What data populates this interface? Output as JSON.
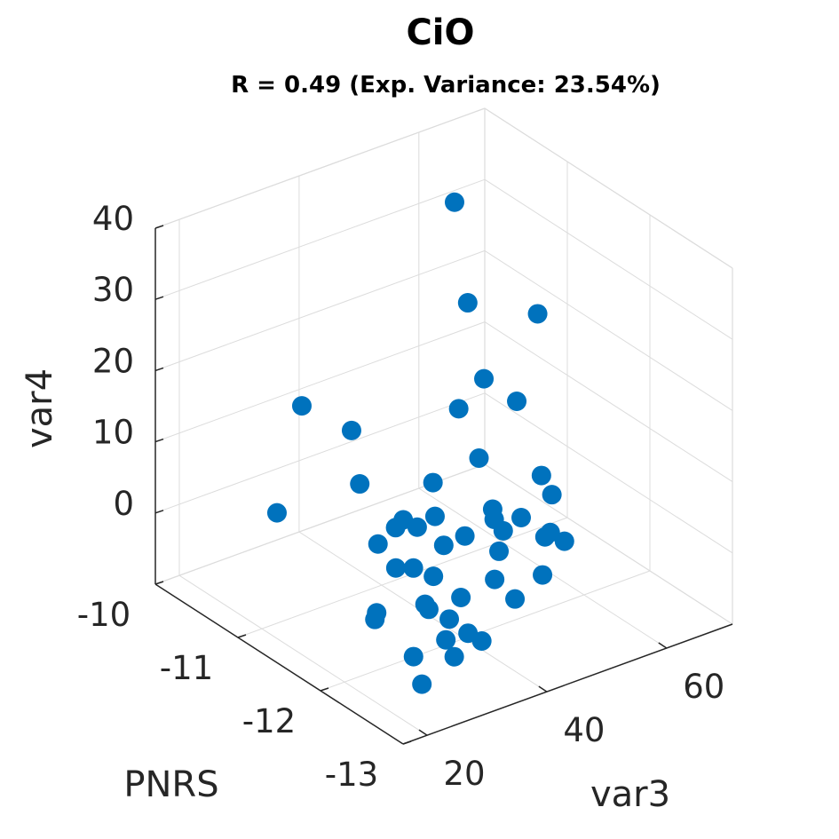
{
  "chart_data": {
    "type": "scatter3d",
    "title": "CiO",
    "subtitle": "R = 0.49 (Exp. Variance: 23.54%)",
    "xlabel": "PNRS",
    "ylabel": "var3",
    "zlabel": "var4",
    "color": "#0072BD",
    "grid": true,
    "xlim": [
      -13,
      -10
    ],
    "ylim": [
      16,
      71
    ],
    "zlim": [
      -10,
      40
    ],
    "xticks": [
      -13,
      -12,
      -11,
      -10
    ],
    "yticks": [
      20,
      40,
      60
    ],
    "zticks": [
      0,
      10,
      20,
      30,
      40
    ],
    "x": [
      -10.2,
      -10.2,
      -10.8,
      -10.2,
      -10.46,
      -10.33,
      -10.2,
      -10.2,
      -10.96,
      -10.8,
      -11.07,
      -11.39,
      -11.64,
      -10.82,
      -11.59,
      -11.79,
      -11.71,
      -11.87,
      -11.37,
      -11.45,
      -11.43,
      -11.51,
      -11.79,
      -11.81,
      -11.55,
      -12.1,
      -12.07,
      -12.22,
      -12.08,
      -11.89,
      -11.95,
      -12.12,
      -12.39,
      -12.52,
      -12.46,
      -12.68,
      -12.41,
      -12.47,
      -12.31,
      -12.39,
      -12.66,
      -12.8,
      -12.8,
      -12.8,
      -12.8,
      -12.8,
      -12.8
    ],
    "y": [
      63.2,
      65.4,
      68.8,
      68.1,
      70.0,
      62.1,
      37.7,
      46.0,
      56.8,
      39.1,
      47.6,
      61.3,
      59.6,
      25.0,
      50.4,
      52.4,
      49.0,
      48.3,
      38.5,
      42.7,
      36.4,
      38.9,
      43.0,
      39.2,
      31.8,
      52.1,
      53.4,
      53.7,
      44.7,
      30.1,
      32.2,
      33.2,
      39.7,
      45.9,
      33.1,
      39.1,
      27.8,
      27.6,
      21.1,
      19.7,
      28.4,
      29.6,
      25.9,
      31.9,
      20.5,
      27.3,
      21.9
    ],
    "z": [
      30.7,
      15.9,
      17.8,
      4.4,
      2.6,
      3.0,
      9.9,
      3.9,
      2.4,
      3.0,
      2.6,
      1.8,
      1.5,
      3.4,
      1.9,
      1.6,
      1.8,
      1.6,
      2.4,
      2.2,
      2.4,
      2.3,
      1.9,
      1.9,
      2.4,
      1.3,
      1.3,
      1.1,
      1.4,
      2.1,
      1.9,
      1.7,
      1.3,
      1.0,
      1.3,
      0.9,
      1.6,
      1.4,
      1.7,
      1.8,
      1.2,
      -0.1,
      0.1,
      -1.9,
      -0.6,
      -2.7,
      -4.9
    ]
  }
}
